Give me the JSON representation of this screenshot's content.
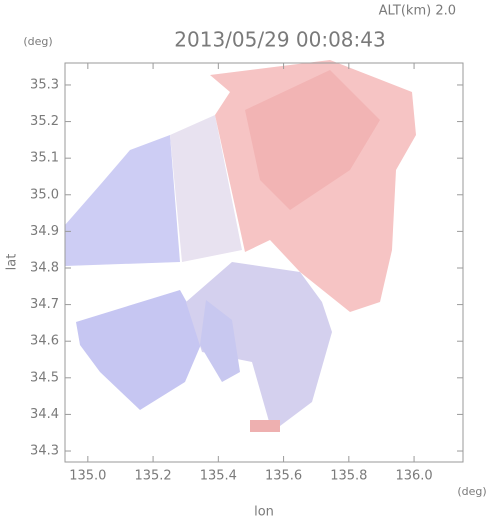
{
  "chart_data": {
    "type": "radar-map",
    "title": "2013/05/29 00:08:43",
    "subtitle": "ALT(km) 2.0",
    "x_label": "lon",
    "x_unit": "(deg)",
    "y_label": "lat",
    "y_unit": "(deg)",
    "xlim": [
      134.93,
      136.15
    ],
    "ylim": [
      34.27,
      35.36
    ],
    "xticks": [
      {
        "value": 135.0,
        "label": "135.0"
      },
      135.2,
      135.4,
      135.6,
      135.8,
      {
        "value": 136.0,
        "label": "136.0"
      }
    ],
    "yticks": [
      34.3,
      34.4,
      34.5,
      34.6,
      34.7,
      34.8,
      34.9,
      {
        "value": 35.0,
        "label": "35.0"
      },
      35.1,
      35.2,
      35.3
    ]
  }
}
